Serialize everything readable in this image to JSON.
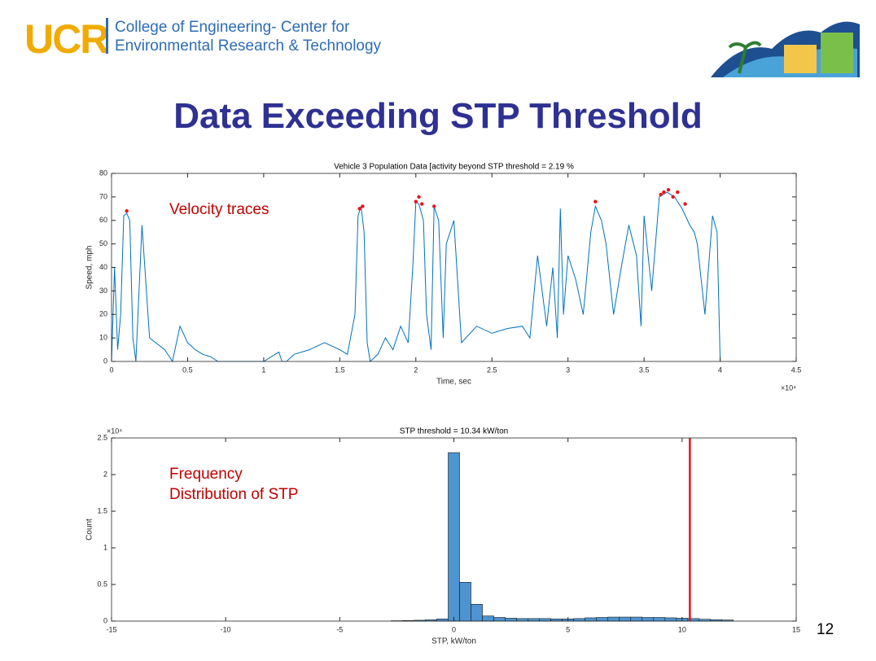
{
  "header": {
    "logo": "UCR",
    "line1": "College of Engineering- Center for",
    "line2": "Environmental Research & Technology"
  },
  "title": "Data Exceeding STP Threshold",
  "page_number": "12",
  "chart_data": [
    {
      "type": "line",
      "title": "Vehicle 3 Population Data [activity beyond STP threshold = 2.19 %",
      "x_label": "Time, sec",
      "y_label": "Speed, mph",
      "x_multiplier": "×10⁴",
      "annotation": "Velocity traces",
      "xlim": [
        0,
        45000
      ],
      "ylim": [
        0,
        80
      ],
      "xticks": [
        0,
        {
          "value": 5000,
          "label": "0.5"
        },
        {
          "value": 10000,
          "label": "1"
        },
        {
          "value": 15000,
          "label": "1.5"
        },
        {
          "value": 20000,
          "label": "2"
        },
        {
          "value": 25000,
          "label": "2.5"
        },
        {
          "value": 30000,
          "label": "3"
        },
        {
          "value": 35000,
          "label": "3.5"
        },
        {
          "value": 40000,
          "label": "4"
        },
        {
          "value": 45000,
          "label": "4.5"
        }
      ],
      "yticks": [
        0,
        10,
        20,
        30,
        40,
        50,
        60,
        70,
        80
      ],
      "series": [
        {
          "color": "#0072bd",
          "x": [
            0,
            200,
            400,
            600,
            800,
            1000,
            1200,
            1400,
            1600,
            2000,
            2500,
            3500,
            4000,
            4500,
            5000,
            5500,
            6000,
            6500,
            7000,
            9000,
            10000,
            11000,
            11200,
            11500,
            12000,
            13000,
            14000,
            15000,
            15500,
            16000,
            16200,
            16400,
            16600,
            16800,
            17000,
            17500,
            18000,
            18500,
            19000,
            19500,
            19800,
            20000,
            20200,
            20500,
            20700,
            21000,
            21200,
            21500,
            21800,
            22000,
            22500,
            23000,
            24000,
            25000,
            26000,
            27000,
            27500,
            28000,
            28300,
            28600,
            29000,
            29300,
            29500,
            29700,
            30000,
            30500,
            31000,
            31500,
            31800,
            32000,
            32200,
            32500,
            33000,
            33500,
            34000,
            34500,
            34800,
            35000,
            35500,
            36000,
            36500,
            37000,
            37500,
            38000,
            38300,
            38500,
            39000,
            39500,
            39800,
            40000
          ],
          "values": [
            0,
            40,
            5,
            20,
            62,
            63,
            60,
            10,
            0,
            58,
            10,
            5,
            0,
            15,
            8,
            5,
            3,
            2,
            0,
            0,
            0,
            4,
            0,
            0,
            3,
            5,
            8,
            5,
            3,
            20,
            62,
            66,
            55,
            8,
            0,
            3,
            10,
            5,
            15,
            8,
            40,
            68,
            67,
            60,
            20,
            5,
            66,
            60,
            10,
            50,
            60,
            8,
            15,
            12,
            14,
            15,
            10,
            45,
            30,
            15,
            40,
            10,
            65,
            20,
            45,
            35,
            20,
            55,
            66,
            63,
            60,
            50,
            20,
            40,
            58,
            45,
            15,
            62,
            30,
            70,
            72,
            70,
            65,
            58,
            55,
            50,
            20,
            62,
            55,
            0
          ]
        },
        {
          "color": "#e8141c",
          "marker": "point",
          "x": [
            1000,
            16300,
            16500,
            20000,
            20200,
            20400,
            21200,
            31800,
            36100,
            36300,
            36600,
            36900,
            37200,
            37700
          ],
          "values": [
            64,
            65,
            66,
            68,
            70,
            67,
            66,
            68,
            71,
            72,
            73,
            70,
            72,
            67
          ]
        }
      ]
    },
    {
      "type": "histogram",
      "title": "STP threshold = 10.34 kW/ton",
      "x_label": "STP, kW/ton",
      "y_label": "Count",
      "y_multiplier": "×10⁴",
      "annotation": [
        "Frequency",
        "Distribution of STP"
      ],
      "xlim": [
        -15,
        15
      ],
      "ylim": [
        0,
        25000
      ],
      "xticks": [
        -15,
        -10,
        -5,
        0,
        5,
        10,
        15
      ],
      "yticks": [
        0,
        {
          "value": 5000,
          "label": "0.5"
        },
        {
          "value": 10000,
          "label": "1"
        },
        {
          "value": 15000,
          "label": "1.5"
        },
        {
          "value": 20000,
          "label": "2"
        },
        {
          "value": 25000,
          "label": "2.5"
        }
      ],
      "color": "#4d94d0",
      "threshold": 10.34,
      "threshold_color": "#e8141c",
      "bins": [
        -2.75,
        -2.25,
        -1.75,
        -1.25,
        -0.75,
        -0.25,
        0.25,
        0.75,
        1.25,
        1.75,
        2.25,
        2.75,
        3.25,
        3.75,
        4.25,
        4.75,
        5.25,
        5.75,
        6.25,
        6.75,
        7.25,
        7.75,
        8.25,
        8.75,
        9.25,
        9.75,
        10.25,
        10.75,
        11.25,
        11.75,
        12.25
      ],
      "counts": [
        50,
        80,
        120,
        180,
        300,
        23000,
        5300,
        2300,
        700,
        500,
        400,
        350,
        350,
        350,
        300,
        300,
        350,
        450,
        500,
        550,
        550,
        550,
        500,
        500,
        450,
        400,
        350,
        250,
        200,
        150
      ]
    }
  ]
}
